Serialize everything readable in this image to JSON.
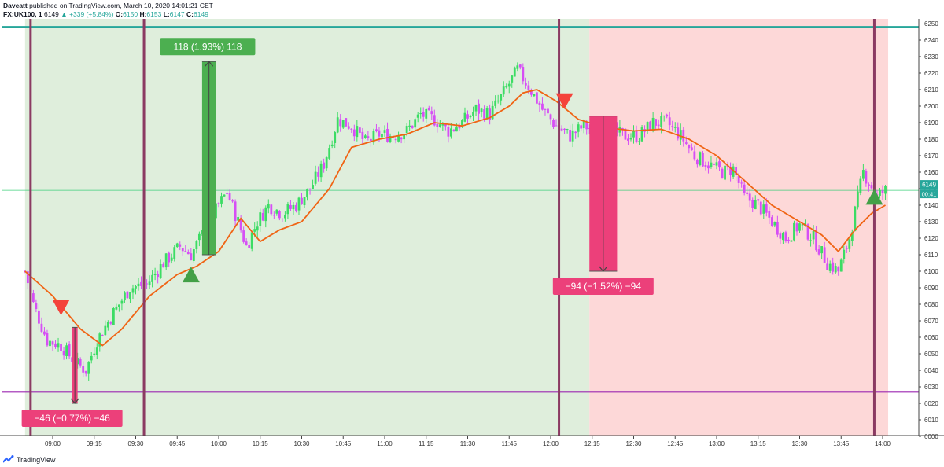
{
  "header": {
    "author": "Daveatt",
    "published": "published on TradingView.com, March 10, 2020 14:01:21 CET",
    "symbol": "FX:UK100, 1",
    "last": "6149",
    "change_arrow": "▲",
    "change": "+339 (+5.84%)",
    "o_label": "O:",
    "o_value": "6150",
    "h_label": "H:",
    "h_value": "6153",
    "l_label": "L:",
    "l_value": "6147",
    "c_label": "C:",
    "c_value": "6149"
  },
  "footer": {
    "brand": "TradingView",
    "icon": "tradingview-logo-icon"
  },
  "colors": {
    "bull": "#3cdc64",
    "bear": "#d64ff5",
    "ema": "#f06414",
    "long_bg": "#dfeedc",
    "short_bg": "#fdd8d8",
    "session_line": "#8b3a62",
    "level_top": "#26a69a",
    "level_bottom": "#9c27b0",
    "long_box": "#4caf50",
    "short_box": "#ec407a",
    "price_line": "#2ecc71"
  },
  "chart_data": {
    "type": "candlestick",
    "xlabel": "",
    "ylabel": "",
    "ylim": [
      6000,
      6255
    ],
    "x_ticks": [
      "09:00",
      "09:15",
      "09:30",
      "09:45",
      "10:00",
      "10:15",
      "10:30",
      "10:45",
      "11:00",
      "11:15",
      "11:30",
      "11:45",
      "12:00",
      "12:15",
      "12:30",
      "12:45",
      "13:00",
      "13:15",
      "13:30",
      "13:45",
      "14:00"
    ],
    "y_ticks": [
      6000,
      6010,
      6020,
      6030,
      6040,
      6050,
      6060,
      6070,
      6080,
      6090,
      6100,
      6110,
      6120,
      6130,
      6140,
      6150,
      6160,
      6170,
      6180,
      6190,
      6200,
      6210,
      6220,
      6230,
      6240
    ],
    "top_axis_label": "6250",
    "close_anchors": [
      {
        "t": "08:50",
        "p": 6100
      },
      {
        "t": "08:53",
        "p": 6080
      },
      {
        "t": "08:58",
        "p": 6058
      },
      {
        "t": "09:03",
        "p": 6055
      },
      {
        "t": "09:08",
        "p": 6045
      },
      {
        "t": "09:12",
        "p": 6040
      },
      {
        "t": "09:16",
        "p": 6058
      },
      {
        "t": "09:22",
        "p": 6075
      },
      {
        "t": "09:28",
        "p": 6090
      },
      {
        "t": "09:34",
        "p": 6092
      },
      {
        "t": "09:40",
        "p": 6105
      },
      {
        "t": "09:46",
        "p": 6115
      },
      {
        "t": "09:50",
        "p": 6110
      },
      {
        "t": "09:55",
        "p": 6125
      },
      {
        "t": "10:00",
        "p": 6140
      },
      {
        "t": "10:03",
        "p": 6148
      },
      {
        "t": "10:07",
        "p": 6130
      },
      {
        "t": "10:10",
        "p": 6115
      },
      {
        "t": "10:14",
        "p": 6130
      },
      {
        "t": "10:18",
        "p": 6140
      },
      {
        "t": "10:23",
        "p": 6135
      },
      {
        "t": "10:28",
        "p": 6140
      },
      {
        "t": "10:33",
        "p": 6150
      },
      {
        "t": "10:38",
        "p": 6165
      },
      {
        "t": "10:43",
        "p": 6192
      },
      {
        "t": "10:48",
        "p": 6188
      },
      {
        "t": "10:53",
        "p": 6178
      },
      {
        "t": "10:58",
        "p": 6183
      },
      {
        "t": "11:03",
        "p": 6182
      },
      {
        "t": "11:08",
        "p": 6185
      },
      {
        "t": "11:13",
        "p": 6195
      },
      {
        "t": "11:18",
        "p": 6192
      },
      {
        "t": "11:23",
        "p": 6185
      },
      {
        "t": "11:28",
        "p": 6190
      },
      {
        "t": "11:33",
        "p": 6198
      },
      {
        "t": "11:38",
        "p": 6195
      },
      {
        "t": "11:43",
        "p": 6208
      },
      {
        "t": "11:48",
        "p": 6222
      },
      {
        "t": "11:52",
        "p": 6212
      },
      {
        "t": "11:57",
        "p": 6198
      },
      {
        "t": "12:02",
        "p": 6188
      },
      {
        "t": "12:07",
        "p": 6182
      },
      {
        "t": "12:12",
        "p": 6188
      },
      {
        "t": "12:17",
        "p": 6185
      },
      {
        "t": "12:22",
        "p": 6185
      },
      {
        "t": "12:27",
        "p": 6182
      },
      {
        "t": "12:32",
        "p": 6182
      },
      {
        "t": "12:37",
        "p": 6190
      },
      {
        "t": "12:42",
        "p": 6190
      },
      {
        "t": "12:47",
        "p": 6182
      },
      {
        "t": "12:52",
        "p": 6170
      },
      {
        "t": "12:57",
        "p": 6165
      },
      {
        "t": "13:02",
        "p": 6160
      },
      {
        "t": "13:06",
        "p": 6162
      },
      {
        "t": "13:10",
        "p": 6145
      },
      {
        "t": "13:15",
        "p": 6140
      },
      {
        "t": "13:20",
        "p": 6130
      },
      {
        "t": "13:25",
        "p": 6120
      },
      {
        "t": "13:30",
        "p": 6128
      },
      {
        "t": "13:35",
        "p": 6120
      },
      {
        "t": "13:40",
        "p": 6105
      },
      {
        "t": "13:44",
        "p": 6100
      },
      {
        "t": "13:48",
        "p": 6120
      },
      {
        "t": "13:53",
        "p": 6160
      },
      {
        "t": "13:58",
        "p": 6145
      },
      {
        "t": "14:01",
        "p": 6149
      }
    ],
    "ema": [
      {
        "t": "08:50",
        "p": 6100
      },
      {
        "t": "09:00",
        "p": 6085
      },
      {
        "t": "09:10",
        "p": 6065
      },
      {
        "t": "09:18",
        "p": 6055
      },
      {
        "t": "09:25",
        "p": 6065
      },
      {
        "t": "09:35",
        "p": 6085
      },
      {
        "t": "09:45",
        "p": 6098
      },
      {
        "t": "09:52",
        "p": 6103
      },
      {
        "t": "10:00",
        "p": 6112
      },
      {
        "t": "10:08",
        "p": 6132
      },
      {
        "t": "10:15",
        "p": 6118
      },
      {
        "t": "10:22",
        "p": 6125
      },
      {
        "t": "10:30",
        "p": 6130
      },
      {
        "t": "10:40",
        "p": 6150
      },
      {
        "t": "10:48",
        "p": 6175
      },
      {
        "t": "10:58",
        "p": 6180
      },
      {
        "t": "11:08",
        "p": 6183
      },
      {
        "t": "11:18",
        "p": 6190
      },
      {
        "t": "11:28",
        "p": 6188
      },
      {
        "t": "11:38",
        "p": 6193
      },
      {
        "t": "11:45",
        "p": 6200
      },
      {
        "t": "11:50",
        "p": 6208
      },
      {
        "t": "11:55",
        "p": 6210
      },
      {
        "t": "12:02",
        "p": 6203
      },
      {
        "t": "12:10",
        "p": 6192
      },
      {
        "t": "12:20",
        "p": 6187
      },
      {
        "t": "12:30",
        "p": 6185
      },
      {
        "t": "12:40",
        "p": 6186
      },
      {
        "t": "12:50",
        "p": 6180
      },
      {
        "t": "13:00",
        "p": 6170
      },
      {
        "t": "13:10",
        "p": 6155
      },
      {
        "t": "13:20",
        "p": 6140
      },
      {
        "t": "13:30",
        "p": 6130
      },
      {
        "t": "13:38",
        "p": 6122
      },
      {
        "t": "13:44",
        "p": 6112
      },
      {
        "t": "13:50",
        "p": 6125
      },
      {
        "t": "13:56",
        "p": 6135
      },
      {
        "t": "14:01",
        "p": 6140
      }
    ],
    "levels": [
      {
        "p": 6248,
        "role": "top-level"
      },
      {
        "p": 6027,
        "role": "bottom-level"
      }
    ],
    "session_lines": [
      "08:52",
      "09:33",
      "12:03",
      "13:57"
    ],
    "backgrounds": [
      {
        "from": "08:50",
        "to": "12:14",
        "kind": "long"
      },
      {
        "from": "12:14",
        "to": "14:02",
        "kind": "short"
      }
    ],
    "trades": [
      {
        "kind": "short",
        "x_from": "09:07",
        "x_to": "09:09",
        "entry": 6066,
        "exit": 6020,
        "label": "−46 (−0.77%) −46",
        "label_side": "below",
        "label_at": "09:07"
      },
      {
        "kind": "long",
        "x_from": "09:54",
        "x_to": "09:59",
        "entry": 6110,
        "exit": 6227,
        "label": "118 (1.93%) 118",
        "label_side": "above",
        "label_at": "09:56"
      },
      {
        "kind": "short",
        "x_from": "12:14",
        "x_to": "12:24",
        "entry": 6194,
        "exit": 6100,
        "label": "−94 (−1.52%) −94",
        "label_side": "below",
        "label_at": "12:19"
      }
    ],
    "markers": [
      {
        "t": "09:03",
        "p": 6078,
        "dir": "down"
      },
      {
        "t": "09:50",
        "p": 6098,
        "dir": "up"
      },
      {
        "t": "12:05",
        "p": 6203,
        "dir": "down"
      },
      {
        "t": "13:57",
        "p": 6145,
        "dir": "up"
      }
    ],
    "price_line": 6149,
    "last_price_label": "6149",
    "countdown": "00:41",
    "grid": false,
    "legend": "none"
  }
}
